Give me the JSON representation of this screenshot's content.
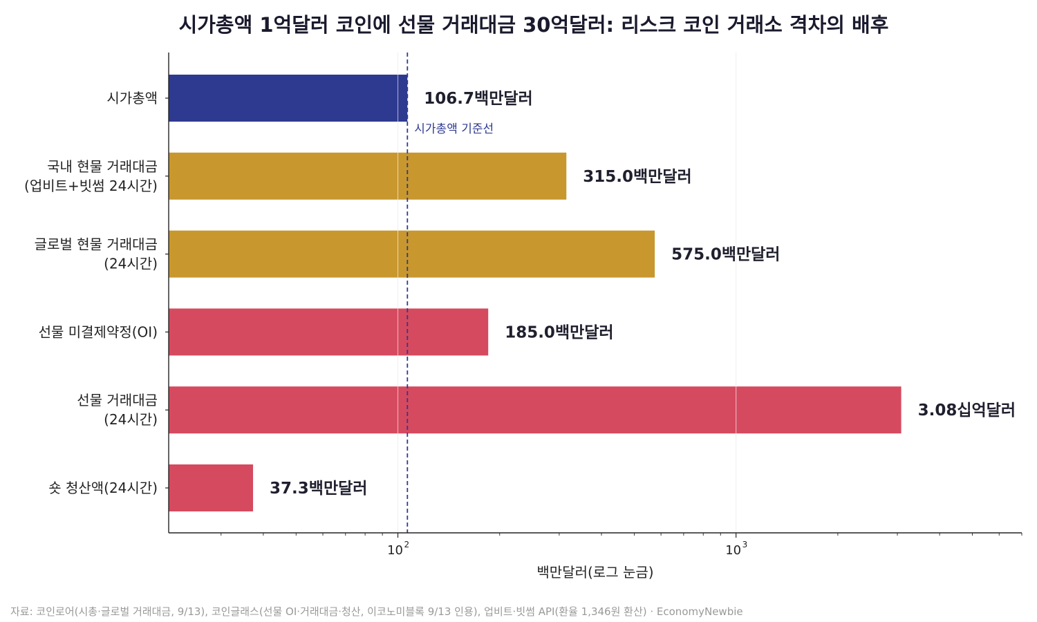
{
  "title": "시가총액 1억달러 코인에 선물 거래대금 30억달러: 리스크 코인 거래소 격차의 배후",
  "colors": {
    "market_cap": "#2e3a8f",
    "spot": "#c8972e",
    "futures": "#d54a5f",
    "reference_line": "#2e3a8f",
    "grid": "#dddddd"
  },
  "chart_data": {
    "type": "bar",
    "orientation": "horizontal",
    "x_scale": "log",
    "xlim": [
      21,
      7000
    ],
    "xlabel": "백만달러(로그 눈금)",
    "x_ticks": [
      {
        "value": 100,
        "base": "10",
        "exp": "2"
      },
      {
        "value": 1000,
        "base": "10",
        "exp": "3"
      }
    ],
    "grid": "vertical",
    "categories": [
      {
        "lines": [
          "시가총액"
        ],
        "value": 106.7,
        "label": "106.7백만달러",
        "color": "market_cap"
      },
      {
        "lines": [
          "국내 현물 거래대금",
          "(업비트+빗썸 24시간)"
        ],
        "value": 315.0,
        "label": "315.0백만달러",
        "color": "spot"
      },
      {
        "lines": [
          "글로벌 현물 거래대금",
          "(24시간)"
        ],
        "value": 575.0,
        "label": "575.0백만달러",
        "color": "spot"
      },
      {
        "lines": [
          "선물 미결제약정(OI)"
        ],
        "value": 185.0,
        "label": "185.0백만달러",
        "color": "futures"
      },
      {
        "lines": [
          "선물 거래대금",
          "(24시간)"
        ],
        "value": 3080.0,
        "label": "3.08십억달러",
        "color": "futures"
      },
      {
        "lines": [
          "숏 청산액(24시간)"
        ],
        "value": 37.3,
        "label": "37.3백만달러",
        "color": "futures"
      }
    ],
    "reference_line": {
      "value": 106.7,
      "label": "시가총액 기준선"
    }
  },
  "source": "자료: 코인로어(시총·글로벌 거래대금, 9/13), 코인글래스(선물 OI·거래대금·청산, 이코노미블록 9/13 인용), 업비트·빗썸 API(환율 1,346원 환산) · EconomyNewbie"
}
